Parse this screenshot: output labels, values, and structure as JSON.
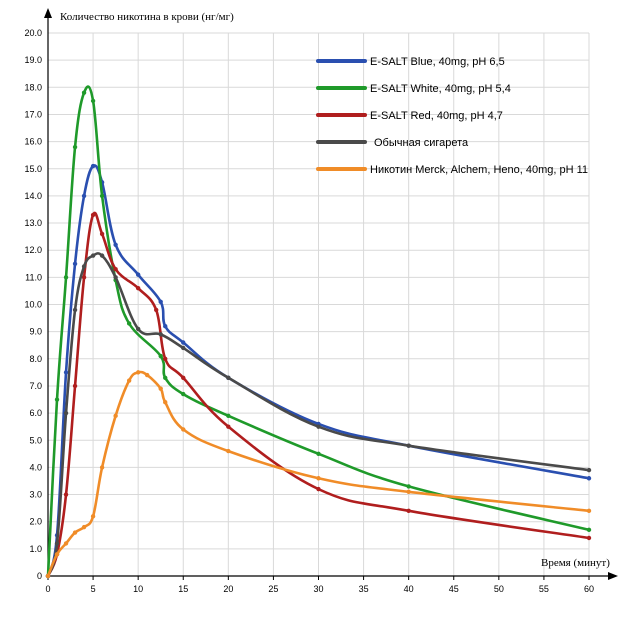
{
  "chart_data": {
    "type": "line",
    "title": "",
    "ylabel": "Количество никотина в крови (нг/мг)",
    "xlabel": "Время (минут)",
    "xlim": [
      0,
      60
    ],
    "ylim": [
      0,
      20
    ],
    "x_ticks": [
      "0",
      "5",
      "10",
      "15",
      "20",
      "25",
      "30",
      "35",
      "40",
      "45",
      "50",
      "55",
      "60"
    ],
    "y_ticks": [
      "0",
      "1.0",
      "2.0",
      "3.0",
      "4.0",
      "5.0",
      "6.0",
      "7.0",
      "8.0",
      "9.0",
      "10.0",
      "11.0",
      "12.0",
      "13.0",
      "14.0",
      "15.0",
      "16.0",
      "17.0",
      "18.0",
      "19.0",
      "20.0"
    ],
    "grid": true,
    "legend_position": "top-right",
    "series": [
      {
        "name": "E-SALT Blue, 40mg, pH 6,5",
        "color": "#2a4fb0",
        "x": [
          0,
          1,
          2,
          3,
          4,
          5,
          6,
          7.5,
          10,
          12.5,
          13,
          15,
          20,
          30,
          40,
          60
        ],
        "y": [
          0,
          1.5,
          7.5,
          11.5,
          14,
          15.1,
          14.5,
          12.2,
          11.1,
          10.1,
          9.2,
          8.6,
          7.3,
          5.6,
          4.8,
          3.6
        ]
      },
      {
        "name": "E-SALT White, 40mg, pH 5,4",
        "color": "#1f9a2a",
        "x": [
          0,
          1,
          2,
          3,
          4,
          5,
          6,
          7.5,
          9,
          12.5,
          13,
          15,
          20,
          30,
          40,
          60
        ],
        "y": [
          0,
          6.5,
          11,
          15.8,
          17.8,
          17.5,
          14,
          10.9,
          9.3,
          8.1,
          7.3,
          6.7,
          5.9,
          4.5,
          3.3,
          1.7
        ]
      },
      {
        "name": "E-SALT Red, 40mg, pH 4,7",
        "color": "#b01e1e",
        "x": [
          0,
          1,
          2,
          3,
          4,
          5,
          6,
          7.5,
          10,
          12,
          13,
          15,
          20,
          30,
          40,
          60
        ],
        "y": [
          0,
          0.8,
          3.0,
          7.0,
          11.0,
          13.3,
          12.6,
          11.3,
          10.6,
          9.8,
          8.0,
          7.3,
          5.5,
          3.2,
          2.4,
          1.4
        ]
      },
      {
        "name": "Обычная сигарета",
        "color": "#4a4a4a",
        "x": [
          0,
          1,
          2,
          3,
          4,
          5,
          6,
          7.5,
          10,
          12.5,
          15,
          20,
          30,
          40,
          60
        ],
        "y": [
          0,
          1.2,
          6.0,
          9.8,
          11.4,
          11.8,
          11.8,
          11.0,
          9.1,
          8.9,
          8.4,
          7.3,
          5.5,
          4.8,
          3.9
        ]
      },
      {
        "name": "Никотин Merck, Alchem, Heno, 40mg, pH 11",
        "color": "#f08c28",
        "x": [
          0,
          1,
          2,
          3,
          4,
          5,
          6,
          7.5,
          9,
          10,
          11,
          12.5,
          13,
          15,
          20,
          30,
          40,
          60
        ],
        "y": [
          0,
          0.8,
          1.2,
          1.6,
          1.8,
          2.2,
          4.0,
          5.9,
          7.2,
          7.5,
          7.4,
          6.9,
          6.4,
          5.4,
          4.6,
          3.6,
          3.1,
          2.4
        ]
      }
    ]
  }
}
